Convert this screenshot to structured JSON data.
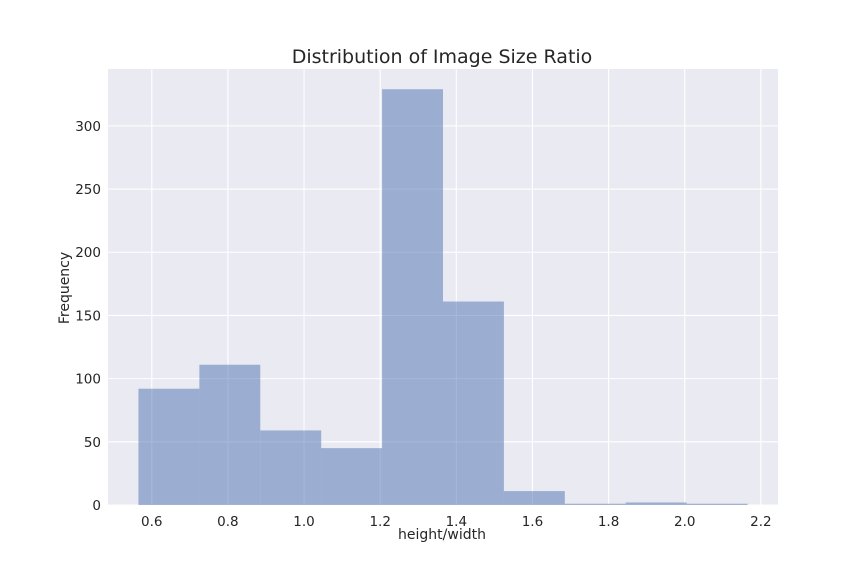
{
  "chart_data": {
    "type": "bar",
    "title": "Distribution of Image Size Ratio",
    "xlabel": "height/width",
    "ylabel": "Frequency",
    "bin_edges": [
      0.565,
      0.725,
      0.885,
      1.045,
      1.205,
      1.365,
      1.525,
      1.685,
      1.845,
      2.005,
      2.165
    ],
    "values": [
      92,
      111,
      59,
      45,
      329,
      161,
      11,
      1,
      2,
      1
    ],
    "xlim": [
      0.485,
      2.245
    ],
    "ylim": [
      0,
      345
    ],
    "xticks": [
      0.6,
      0.8,
      1.0,
      1.2,
      1.4,
      1.6,
      1.8,
      2.0,
      2.2
    ],
    "xtick_labels": [
      "0.6",
      "0.8",
      "1.0",
      "1.2",
      "1.4",
      "1.6",
      "1.8",
      "2.0",
      "2.2"
    ],
    "yticks": [
      0,
      50,
      100,
      150,
      200,
      250,
      300
    ],
    "ytick_labels": [
      "0",
      "50",
      "100",
      "150",
      "200",
      "250",
      "300"
    ],
    "bar_color": "#4c72b0",
    "bar_alpha": 0.5,
    "background_color": "#eaeaf2",
    "grid": true
  }
}
